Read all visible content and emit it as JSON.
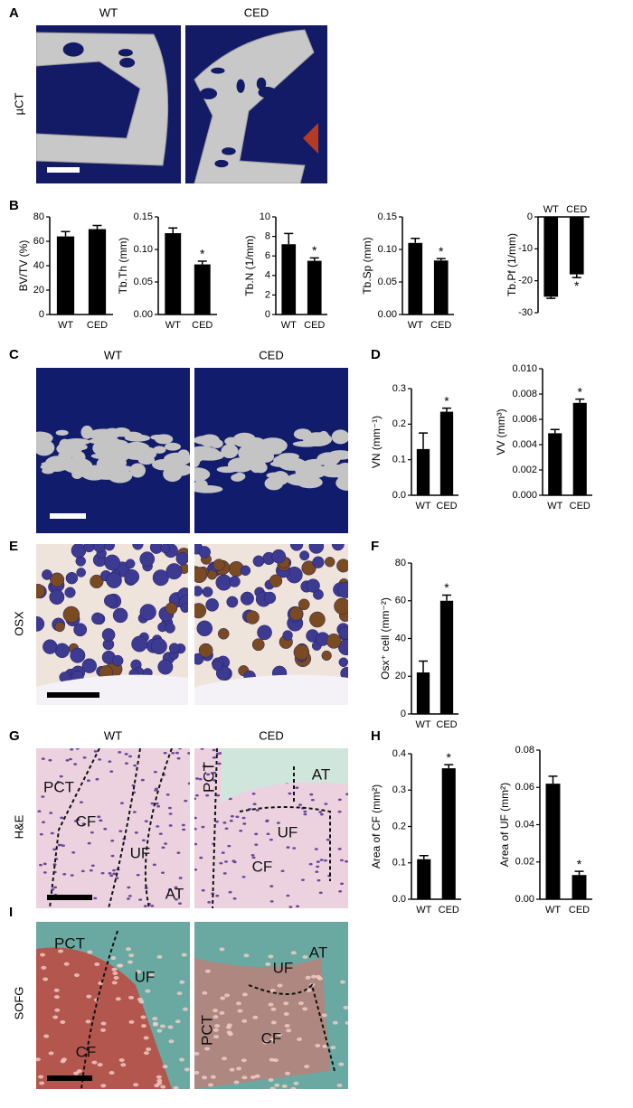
{
  "panel_labels": [
    "A",
    "B",
    "C",
    "D",
    "E",
    "F",
    "G",
    "H",
    "I"
  ],
  "image_rows": [
    {
      "row_label": "µCT",
      "column_labels": [
        "WT",
        "CED"
      ]
    },
    {
      "column_labels": [
        "WT",
        "CED"
      ]
    },
    {
      "row_label": "OSX"
    },
    {
      "row_label": "H&E",
      "column_labels": [
        "WT",
        "CED"
      ],
      "overlays": [
        [
          "PCT",
          "CF",
          "UF",
          "AT"
        ],
        [
          "PCT",
          "AT",
          "UF",
          "CF"
        ]
      ]
    },
    {
      "row_label": "SOFG",
      "overlays": [
        [
          "PCT",
          "UF",
          "CF"
        ],
        [
          "UF",
          "AT",
          "PCT",
          "CF"
        ]
      ]
    }
  ],
  "chart_data": [
    {
      "type": "bar",
      "ylabel": "BV/TV (%)",
      "categories": [
        "WT",
        "CED"
      ],
      "values": [
        64,
        70
      ],
      "errors": [
        4,
        3
      ],
      "ylim": [
        0,
        80
      ],
      "yticks": [
        0,
        20,
        40,
        60,
        80
      ],
      "color": "#000000"
    },
    {
      "type": "bar",
      "ylabel": "Tb.Th (mm)",
      "categories": [
        "WT",
        "CED"
      ],
      "values": [
        0.125,
        0.077
      ],
      "errors": [
        0.008,
        0.005
      ],
      "significance": [
        null,
        "*"
      ],
      "ylim": [
        0,
        0.15
      ],
      "yticks": [
        {
          "value": 0,
          "label": "0.00"
        },
        0.05,
        {
          "value": 0.1,
          "label": "0.10"
        },
        0.15
      ],
      "color": "#000000"
    },
    {
      "type": "bar",
      "ylabel": "Tb.N (1/mm)",
      "categories": [
        "WT",
        "CED"
      ],
      "values": [
        7.2,
        5.5
      ],
      "errors": [
        1.1,
        0.3
      ],
      "significance": [
        null,
        "*"
      ],
      "ylim": [
        0,
        10
      ],
      "yticks": [
        0,
        2,
        4,
        6,
        8,
        10
      ],
      "color": "#000000"
    },
    {
      "type": "bar",
      "ylabel": "Tb.Sp (mm)",
      "categories": [
        "WT",
        "CED"
      ],
      "values": [
        0.11,
        0.083
      ],
      "errors": [
        0.007,
        0.003
      ],
      "significance": [
        null,
        "*"
      ],
      "ylim": [
        0,
        0.15
      ],
      "yticks": [
        {
          "value": 0,
          "label": "0.00"
        },
        0.05,
        {
          "value": 0.1,
          "label": "0.10"
        },
        0.15
      ],
      "color": "#000000"
    },
    {
      "type": "bar",
      "ylabel": "Tb.Pf (1/mm)",
      "categories": [
        "WT",
        "CED"
      ],
      "values": [
        -25,
        -18
      ],
      "errors": [
        0.5,
        1
      ],
      "significance": [
        null,
        "*"
      ],
      "ylim": [
        -30,
        0
      ],
      "yticks": [
        -30,
        -20,
        -10,
        0
      ],
      "color": "#000000"
    },
    {
      "type": "bar",
      "ylabel": "VN (mm⁻¹)",
      "categories": [
        "WT",
        "CED"
      ],
      "values": [
        0.13,
        0.235
      ],
      "errors": [
        0.045,
        0.01
      ],
      "significance": [
        null,
        "*"
      ],
      "ylim": [
        0,
        0.3
      ],
      "yticks": [
        {
          "value": 0,
          "label": "0.0"
        },
        0.1,
        0.2,
        0.3
      ],
      "color": "#000000"
    },
    {
      "type": "bar",
      "ylabel": "VV (mm³)",
      "categories": [
        "WT",
        "CED"
      ],
      "values": [
        0.0049,
        0.0073
      ],
      "errors": [
        0.0003,
        0.0003
      ],
      "significance": [
        null,
        "*"
      ],
      "ylim": [
        0,
        0.01
      ],
      "yticks": [
        {
          "value": 0,
          "label": "0.000"
        },
        0.002,
        0.004,
        0.006,
        0.008,
        {
          "value": 0.01,
          "label": "0.010"
        }
      ],
      "color": "#000000"
    },
    {
      "type": "bar",
      "ylabel": "Osx⁺ cell (mm⁻²)",
      "categories": [
        "WT",
        "CED"
      ],
      "values": [
        22,
        60
      ],
      "errors": [
        6,
        3
      ],
      "significance": [
        null,
        "*"
      ],
      "ylim": [
        0,
        80
      ],
      "yticks": [
        0,
        20,
        40,
        60,
        80
      ],
      "color": "#000000"
    },
    {
      "type": "bar",
      "ylabel": "Area of CF (mm²)",
      "categories": [
        "WT",
        "CED"
      ],
      "values": [
        0.11,
        0.36
      ],
      "errors": [
        0.01,
        0.01
      ],
      "significance": [
        null,
        "*"
      ],
      "ylim": [
        0,
        0.4
      ],
      "yticks": [
        {
          "value": 0,
          "label": "0.0"
        },
        0.1,
        0.2,
        0.3,
        0.4
      ],
      "color": "#000000"
    },
    {
      "type": "bar",
      "ylabel": "Area of UF (mm²)",
      "categories": [
        "WT",
        "CED"
      ],
      "values": [
        0.062,
        0.013
      ],
      "errors": [
        0.004,
        0.002
      ],
      "significance": [
        null,
        "*"
      ],
      "ylim": [
        0,
        0.08
      ],
      "yticks": [
        {
          "value": 0,
          "label": "0.00"
        },
        0.02,
        0.04,
        0.06,
        0.08
      ],
      "color": "#000000"
    }
  ]
}
